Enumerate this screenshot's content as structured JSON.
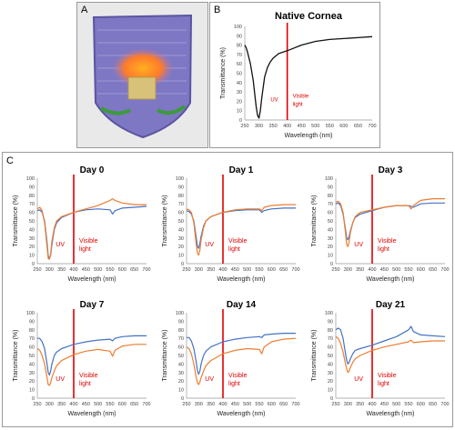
{
  "panels": {
    "a": {
      "label": "A",
      "description": ""
    },
    "b": {
      "label": "B"
    },
    "c": {
      "label": "C"
    }
  },
  "colors": {
    "blue": "#4472c4",
    "orange": "#ed7d31",
    "uv_line": "#e00000",
    "black": "#111111",
    "annotation": "#e00000"
  },
  "annotations": {
    "uv": "UV",
    "visible": "Visible\nlight"
  },
  "chart_data": [
    {
      "type": "line",
      "title": "Native Cornea",
      "xlabel": "Wavelength (nm)",
      "ylabel": "Transmittance (%)",
      "xlim": [
        250,
        700
      ],
      "ylim": [
        0,
        100
      ],
      "xticks": [
        250,
        300,
        350,
        400,
        450,
        500,
        550,
        600,
        650,
        700
      ],
      "yticks": [
        0,
        10,
        20,
        30,
        40,
        50,
        60,
        70,
        80,
        90,
        100
      ],
      "series": [
        {
          "color": "#111111",
          "x": [
            250,
            255,
            260,
            270,
            280,
            290,
            295,
            300,
            305,
            310,
            320,
            330,
            340,
            350,
            370,
            400,
            450,
            500,
            550,
            600,
            650,
            700
          ],
          "y": [
            80,
            77,
            72,
            60,
            42,
            15,
            5,
            2,
            10,
            24,
            46,
            56,
            62,
            66,
            71,
            74,
            80,
            84,
            86,
            87,
            88,
            89
          ]
        }
      ]
    },
    {
      "type": "line",
      "title": "Day 0",
      "xlabel": "Wavelength (nm)",
      "ylabel": "Transmittance (%)",
      "xlim": [
        250,
        700
      ],
      "ylim": [
        0,
        100
      ],
      "xticks": [
        250,
        300,
        350,
        400,
        450,
        500,
        550,
        600,
        650,
        700
      ],
      "yticks": [
        0,
        10,
        20,
        30,
        40,
        50,
        60,
        70,
        80,
        90,
        100
      ],
      "series": [
        {
          "color": "#4472c4",
          "x": [
            250,
            260,
            270,
            280,
            290,
            295,
            300,
            305,
            310,
            320,
            330,
            350,
            400,
            450,
            500,
            550,
            560,
            570,
            600,
            650,
            700
          ],
          "y": [
            62,
            63,
            60,
            50,
            25,
            9,
            6,
            10,
            22,
            40,
            48,
            54,
            60,
            63,
            64,
            63,
            58,
            62,
            65,
            66,
            67
          ]
        },
        {
          "color": "#ed7d31",
          "x": [
            250,
            260,
            270,
            280,
            290,
            295,
            300,
            305,
            310,
            320,
            330,
            350,
            400,
            450,
            500,
            550,
            560,
            570,
            600,
            650,
            700
          ],
          "y": [
            64,
            66,
            62,
            48,
            20,
            6,
            5,
            12,
            26,
            42,
            50,
            55,
            60,
            64,
            68,
            74,
            76,
            74,
            71,
            69,
            69
          ]
        }
      ]
    },
    {
      "type": "line",
      "title": "Day 1",
      "xlabel": "Wavelength (nm)",
      "ylabel": "Transmittance (%)",
      "xlim": [
        250,
        700
      ],
      "ylim": [
        0,
        100
      ],
      "xticks": [
        250,
        300,
        350,
        400,
        450,
        500,
        550,
        600,
        650,
        700
      ],
      "yticks": [
        0,
        10,
        20,
        30,
        40,
        50,
        60,
        70,
        80,
        90,
        100
      ],
      "series": [
        {
          "color": "#4472c4",
          "x": [
            250,
            260,
            270,
            280,
            290,
            295,
            300,
            305,
            310,
            320,
            330,
            350,
            400,
            450,
            500,
            550,
            560,
            570,
            600,
            650,
            700
          ],
          "y": [
            62,
            61,
            58,
            50,
            30,
            20,
            18,
            24,
            32,
            44,
            50,
            55,
            60,
            62,
            63,
            63,
            60,
            62,
            64,
            65,
            65
          ]
        },
        {
          "color": "#ed7d31",
          "x": [
            250,
            260,
            270,
            280,
            290,
            295,
            300,
            305,
            310,
            320,
            330,
            350,
            400,
            450,
            500,
            550,
            560,
            570,
            600,
            650,
            700
          ],
          "y": [
            64,
            63,
            60,
            48,
            22,
            12,
            10,
            16,
            28,
            42,
            50,
            55,
            60,
            63,
            64,
            64,
            62,
            66,
            68,
            69,
            69
          ]
        }
      ]
    },
    {
      "type": "line",
      "title": "Day 3",
      "xlabel": "Wavelength (nm)",
      "ylabel": "Transmittance (%)",
      "xlim": [
        250,
        700
      ],
      "ylim": [
        0,
        100
      ],
      "xticks": [
        250,
        300,
        350,
        400,
        450,
        500,
        550,
        600,
        650,
        700
      ],
      "yticks": [
        0,
        10,
        20,
        30,
        40,
        50,
        60,
        70,
        80,
        90,
        100
      ],
      "series": [
        {
          "color": "#4472c4",
          "x": [
            250,
            260,
            270,
            280,
            290,
            295,
            300,
            305,
            310,
            320,
            330,
            350,
            400,
            450,
            500,
            550,
            560,
            570,
            600,
            650,
            700
          ],
          "y": [
            70,
            71,
            68,
            58,
            40,
            30,
            28,
            32,
            38,
            48,
            54,
            58,
            62,
            66,
            68,
            68,
            67,
            66,
            70,
            71,
            71
          ]
        },
        {
          "color": "#ed7d31",
          "x": [
            250,
            260,
            270,
            280,
            290,
            295,
            300,
            305,
            310,
            320,
            330,
            350,
            400,
            450,
            500,
            550,
            560,
            570,
            600,
            650,
            700
          ],
          "y": [
            72,
            73,
            70,
            60,
            36,
            22,
            20,
            26,
            36,
            48,
            55,
            60,
            63,
            66,
            68,
            68,
            64,
            68,
            74,
            76,
            76
          ]
        }
      ]
    },
    {
      "type": "line",
      "title": "Day 7",
      "xlabel": "Wavelength (nm)",
      "ylabel": "Transmittance (%)",
      "xlim": [
        250,
        700
      ],
      "ylim": [
        0,
        100
      ],
      "xticks": [
        250,
        300,
        350,
        400,
        450,
        500,
        550,
        600,
        650,
        700
      ],
      "yticks": [
        0,
        10,
        20,
        30,
        40,
        50,
        60,
        70,
        80,
        90,
        100
      ],
      "series": [
        {
          "color": "#4472c4",
          "x": [
            250,
            260,
            270,
            280,
            290,
            295,
            300,
            305,
            310,
            320,
            330,
            350,
            400,
            450,
            500,
            550,
            560,
            570,
            600,
            650,
            700
          ],
          "y": [
            70,
            70,
            66,
            58,
            40,
            30,
            27,
            32,
            40,
            50,
            54,
            58,
            63,
            66,
            68,
            69,
            67,
            70,
            72,
            73,
            73
          ]
        },
        {
          "color": "#ed7d31",
          "x": [
            250,
            260,
            270,
            280,
            290,
            295,
            300,
            305,
            310,
            320,
            330,
            350,
            400,
            450,
            500,
            550,
            560,
            570,
            600,
            650,
            700
          ],
          "y": [
            58,
            56,
            50,
            40,
            24,
            16,
            15,
            18,
            24,
            32,
            38,
            44,
            51,
            55,
            57,
            55,
            49,
            56,
            61,
            63,
            63
          ]
        }
      ]
    },
    {
      "type": "line",
      "title": "Day 14",
      "xlabel": "Wavelength (nm)",
      "ylabel": "Transmittance (%)",
      "xlim": [
        250,
        700
      ],
      "ylim": [
        0,
        100
      ],
      "xticks": [
        250,
        300,
        350,
        400,
        450,
        500,
        550,
        600,
        650,
        700
      ],
      "yticks": [
        0,
        10,
        20,
        30,
        40,
        50,
        60,
        70,
        80,
        90,
        100
      ],
      "series": [
        {
          "color": "#4472c4",
          "x": [
            250,
            260,
            270,
            280,
            290,
            295,
            300,
            305,
            310,
            320,
            330,
            350,
            400,
            450,
            500,
            550,
            560,
            570,
            600,
            650,
            700
          ],
          "y": [
            71,
            71,
            67,
            58,
            42,
            32,
            28,
            32,
            40,
            50,
            55,
            60,
            66,
            69,
            71,
            72,
            71,
            74,
            75,
            76,
            76
          ]
        },
        {
          "color": "#ed7d31",
          "x": [
            250,
            260,
            270,
            280,
            290,
            295,
            300,
            305,
            310,
            320,
            330,
            350,
            400,
            450,
            500,
            550,
            560,
            570,
            600,
            650,
            700
          ],
          "y": [
            60,
            58,
            52,
            40,
            24,
            18,
            16,
            19,
            24,
            32,
            38,
            44,
            52,
            56,
            58,
            57,
            52,
            60,
            66,
            69,
            70
          ]
        }
      ]
    },
    {
      "type": "line",
      "title": "Day 21",
      "xlabel": "Wavelength (nm)",
      "ylabel": "Transmittance (%)",
      "xlim": [
        250,
        700
      ],
      "ylim": [
        0,
        100
      ],
      "xticks": [
        250,
        300,
        350,
        400,
        450,
        500,
        550,
        600,
        650,
        700
      ],
      "yticks": [
        0,
        10,
        20,
        30,
        40,
        50,
        60,
        70,
        80,
        90,
        100
      ],
      "series": [
        {
          "color": "#4472c4",
          "x": [
            250,
            260,
            270,
            280,
            290,
            295,
            300,
            305,
            310,
            320,
            330,
            350,
            400,
            450,
            500,
            550,
            560,
            570,
            600,
            650,
            700
          ],
          "y": [
            80,
            82,
            80,
            70,
            52,
            44,
            40,
            42,
            46,
            52,
            56,
            58,
            62,
            67,
            72,
            80,
            84,
            78,
            74,
            73,
            72
          ]
        },
        {
          "color": "#ed7d31",
          "x": [
            250,
            260,
            270,
            280,
            290,
            295,
            300,
            305,
            310,
            320,
            330,
            350,
            400,
            450,
            500,
            550,
            560,
            570,
            600,
            650,
            700
          ],
          "y": [
            72,
            70,
            64,
            54,
            40,
            34,
            30,
            32,
            36,
            42,
            46,
            50,
            56,
            60,
            63,
            66,
            68,
            65,
            66,
            67,
            67
          ]
        }
      ]
    }
  ]
}
